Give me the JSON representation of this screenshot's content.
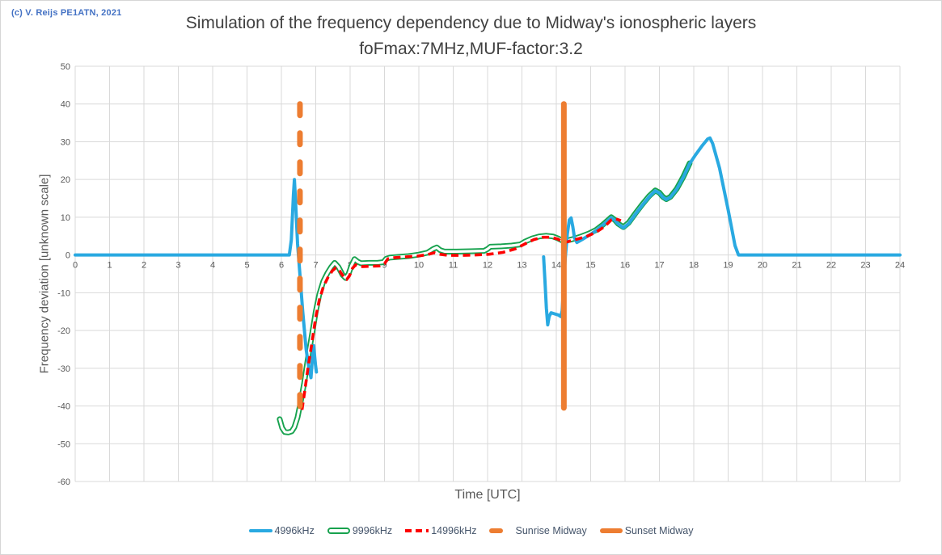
{
  "window": {
    "copyright": "(c) V. Reijs PE1ATN, 2021"
  },
  "title": {
    "line1": "Simulation of the frequency dependency due to Midway's ionospheric layers",
    "line2": "foFmax:7MHz,MUF-factor:3.2"
  },
  "colors": {
    "blue_4996": "#29A9E1",
    "green_9996": "#17A24E",
    "red_14996": "#FE0000",
    "orange_sun": "#ED7D31",
    "grid": "#D9D9D9",
    "tick_text": "#595959",
    "title_text": "#404040",
    "copyright_text": "#4472C4",
    "legend_text": "#44546A"
  },
  "chart_data": {
    "type": "line",
    "title": "Simulation of the frequency dependency due to Midway's ionospheric layers foFmax:7MHz,MUF-factor:3.2",
    "xlabel": "Time [UTC]",
    "ylabel": "Frequency deviation [unknown scale]",
    "xlim": [
      0,
      24
    ],
    "ylim": [
      -60,
      50
    ],
    "x_ticks": [
      0,
      1,
      2,
      3,
      4,
      5,
      6,
      7,
      8,
      9,
      10,
      11,
      12,
      13,
      14,
      15,
      16,
      17,
      18,
      19,
      20,
      21,
      22,
      23,
      24
    ],
    "y_ticks": [
      -60,
      -50,
      -40,
      -30,
      -20,
      -10,
      0,
      10,
      20,
      30,
      40,
      50
    ],
    "grid": true,
    "legend_position": "bottom",
    "series": [
      {
        "name": "4996kHz",
        "type": "line",
        "color": "#29A9E1",
        "dash": "solid",
        "width": 4,
        "segments": [
          [
            [
              0,
              0
            ],
            [
              6.23,
              0
            ],
            [
              6.29,
              4
            ],
            [
              6.35,
              16
            ],
            [
              6.38,
              20
            ],
            [
              6.42,
              13
            ],
            [
              6.47,
              3
            ],
            [
              6.53,
              -4
            ],
            [
              6.62,
              -15
            ],
            [
              6.72,
              -25
            ],
            [
              6.81,
              -30.5
            ],
            [
              6.86,
              -32.5
            ],
            [
              6.9,
              -27.5
            ],
            [
              6.94,
              -24
            ],
            [
              6.99,
              -29
            ],
            [
              7.02,
              -31
            ]
          ],
          [
            [
              13.63,
              -0.5
            ],
            [
              13.67,
              -7
            ],
            [
              13.71,
              -14
            ],
            [
              13.75,
              -18.5
            ],
            [
              13.79,
              -16.3
            ],
            [
              13.85,
              -15.3
            ],
            [
              13.95,
              -15.6
            ],
            [
              14.06,
              -15.9
            ],
            [
              14.13,
              -16.3
            ],
            [
              14.17,
              -14.8
            ],
            [
              14.21,
              -9
            ],
            [
              14.26,
              -1
            ],
            [
              14.32,
              5.5
            ],
            [
              14.38,
              9.3
            ],
            [
              14.43,
              9.8
            ],
            [
              14.48,
              7.5
            ],
            [
              14.53,
              4.5
            ],
            [
              14.6,
              3.3
            ],
            [
              14.75,
              4.1
            ],
            [
              14.95,
              5.2
            ],
            [
              15.15,
              6.4
            ],
            [
              15.35,
              7.9
            ],
            [
              15.5,
              9.1
            ],
            [
              15.6,
              9.9
            ],
            [
              15.7,
              9.2
            ],
            [
              15.8,
              8.2
            ],
            [
              15.95,
              7.2
            ],
            [
              16.1,
              8.3
            ],
            [
              16.3,
              10.8
            ],
            [
              16.5,
              13.2
            ],
            [
              16.7,
              15.4
            ],
            [
              16.88,
              17
            ],
            [
              17.0,
              16.4
            ],
            [
              17.1,
              15.3
            ],
            [
              17.2,
              14.7
            ],
            [
              17.32,
              15.3
            ],
            [
              17.5,
              17.4
            ],
            [
              17.7,
              20.7
            ],
            [
              17.88,
              24.2
            ],
            [
              18.05,
              26.5
            ],
            [
              18.25,
              29
            ],
            [
              18.4,
              30.7
            ],
            [
              18.47,
              31
            ],
            [
              18.55,
              29.5
            ],
            [
              18.75,
              23
            ],
            [
              19.0,
              12
            ],
            [
              19.2,
              2.5
            ],
            [
              19.3,
              0
            ],
            [
              24,
              0
            ]
          ]
        ]
      },
      {
        "name": "9996kHz",
        "type": "line",
        "color": "#17A24E",
        "dash": "outline-white-core",
        "width": 7,
        "segments": [
          [
            [
              5.95,
              -43.5
            ],
            [
              6.02,
              -45.8
            ],
            [
              6.1,
              -46.9
            ],
            [
              6.2,
              -47
            ],
            [
              6.3,
              -46.7
            ],
            [
              6.38,
              -45.6
            ],
            [
              6.47,
              -43
            ],
            [
              6.56,
              -39
            ],
            [
              6.66,
              -34
            ],
            [
              6.77,
              -27.5
            ],
            [
              6.9,
              -20.5
            ],
            [
              7.0,
              -15
            ],
            [
              7.1,
              -10.5
            ],
            [
              7.22,
              -7
            ],
            [
              7.34,
              -4.8
            ],
            [
              7.45,
              -3.2
            ],
            [
              7.55,
              -2.1
            ],
            [
              7.66,
              -3.2
            ],
            [
              7.78,
              -5.3
            ],
            [
              7.87,
              -6.1
            ],
            [
              7.95,
              -5.1
            ],
            [
              8.04,
              -2.8
            ],
            [
              8.13,
              -1.1
            ],
            [
              8.22,
              -1.8
            ],
            [
              8.32,
              -2.2
            ],
            [
              8.55,
              -2.1
            ],
            [
              8.8,
              -2.1
            ],
            [
              8.97,
              -1.9
            ],
            [
              9.05,
              -1.0
            ],
            [
              9.15,
              -0.7
            ],
            [
              9.4,
              -0.5
            ],
            [
              9.7,
              -0.3
            ],
            [
              10.0,
              0.1
            ],
            [
              10.25,
              0.6
            ],
            [
              10.42,
              1.6
            ],
            [
              10.52,
              2.0
            ],
            [
              10.62,
              1.3
            ],
            [
              10.75,
              0.9
            ],
            [
              11.1,
              0.9
            ],
            [
              11.5,
              1.0
            ],
            [
              11.9,
              1.1
            ],
            [
              12.0,
              1.6
            ],
            [
              12.08,
              2.2
            ],
            [
              12.4,
              2.3
            ],
            [
              12.7,
              2.5
            ],
            [
              12.95,
              2.8
            ],
            [
              13.1,
              3.6
            ],
            [
              13.3,
              4.4
            ],
            [
              13.5,
              4.9
            ],
            [
              13.7,
              5.1
            ],
            [
              13.9,
              4.9
            ],
            [
              14.05,
              4.4
            ],
            [
              14.22,
              3.6
            ],
            [
              14.35,
              3.9
            ],
            [
              14.55,
              4.4
            ],
            [
              14.75,
              5.0
            ],
            [
              14.95,
              5.7
            ],
            [
              15.15,
              6.6
            ],
            [
              15.35,
              8.0
            ],
            [
              15.5,
              9.2
            ],
            [
              15.6,
              10
            ],
            [
              15.7,
              9.3
            ],
            [
              15.8,
              8.3
            ],
            [
              15.95,
              7.4
            ],
            [
              16.1,
              8.5
            ],
            [
              16.3,
              11
            ],
            [
              16.5,
              13.4
            ],
            [
              16.7,
              15.6
            ],
            [
              16.88,
              17.1
            ],
            [
              17.0,
              16.5
            ],
            [
              17.1,
              15.4
            ],
            [
              17.2,
              14.8
            ],
            [
              17.32,
              15.4
            ],
            [
              17.5,
              17.5
            ],
            [
              17.7,
              20.8
            ],
            [
              17.88,
              24.3
            ]
          ]
        ]
      },
      {
        "name": "14996kHz",
        "type": "line",
        "color": "#FE0000",
        "dash": "dashed",
        "width": 3.6,
        "segments": [
          [
            [
              6.6,
              -41
            ],
            [
              6.68,
              -36
            ],
            [
              6.78,
              -29.5
            ],
            [
              6.9,
              -22.5
            ],
            [
              7.0,
              -16.5
            ],
            [
              7.1,
              -12
            ],
            [
              7.22,
              -8.5
            ],
            [
              7.35,
              -6
            ],
            [
              7.48,
              -4.2
            ],
            [
              7.58,
              -3.4
            ],
            [
              7.7,
              -4.3
            ],
            [
              7.82,
              -5.9
            ],
            [
              7.9,
              -6.5
            ],
            [
              7.98,
              -5.5
            ],
            [
              8.07,
              -3.5
            ],
            [
              8.16,
              -2.6
            ],
            [
              8.3,
              -3.1
            ],
            [
              8.55,
              -3.0
            ],
            [
              8.85,
              -2.9
            ],
            [
              9.0,
              -2.3
            ],
            [
              9.1,
              -1.0
            ],
            [
              9.3,
              -0.7
            ],
            [
              9.6,
              -0.5
            ],
            [
              9.95,
              -0.3
            ],
            [
              10.25,
              0.1
            ],
            [
              10.45,
              0.6
            ],
            [
              10.6,
              0.2
            ],
            [
              10.85,
              -0.1
            ],
            [
              11.25,
              -0.1
            ],
            [
              11.65,
              0
            ],
            [
              12.05,
              0.2
            ],
            [
              12.45,
              0.7
            ],
            [
              12.8,
              1.6
            ],
            [
              13.1,
              3.0
            ],
            [
              13.35,
              4.1
            ],
            [
              13.6,
              4.7
            ],
            [
              13.85,
              4.7
            ],
            [
              14.05,
              4.2
            ],
            [
              14.22,
              3.2
            ],
            [
              14.4,
              3.7
            ],
            [
              14.65,
              4.3
            ],
            [
              14.9,
              5.0
            ],
            [
              15.15,
              6.0
            ],
            [
              15.4,
              7.5
            ],
            [
              15.6,
              9.3
            ],
            [
              15.72,
              9.6
            ],
            [
              15.88,
              9.1
            ]
          ]
        ]
      },
      {
        "name": "Sunrise Midway",
        "type": "vline",
        "color": "#ED7D31",
        "dash": "dashed",
        "width": 7,
        "x": 6.54,
        "y_span": [
          -41,
          40
        ]
      },
      {
        "name": "Sunset Midway",
        "type": "vline",
        "color": "#ED7D31",
        "dash": "solid",
        "width": 7,
        "x": 14.22,
        "y_span": [
          -40.5,
          40
        ]
      }
    ]
  }
}
